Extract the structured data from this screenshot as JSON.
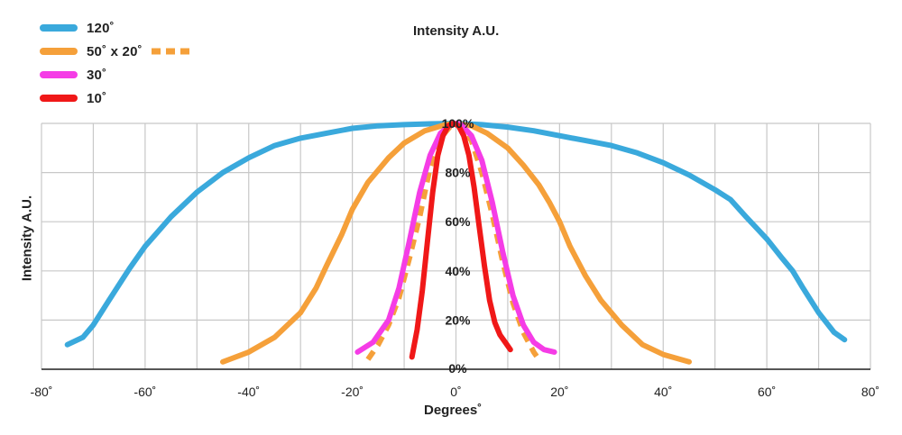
{
  "chart_data": {
    "type": "line",
    "title": "Intensity A.U.",
    "xlabel": "Degrees˚",
    "ylabel": "Intensity A.U.",
    "xlim": [
      -80,
      80
    ],
    "ylim": [
      0,
      100
    ],
    "x_ticks": [
      "-80˚",
      "-60˚",
      "-40˚",
      "-20˚",
      "0˚",
      "20˚",
      "40˚",
      "60˚",
      "80˚"
    ],
    "y_ticks": [
      "0%",
      "20%",
      "40%",
      "60%",
      "80%",
      "100%"
    ],
    "grid": true,
    "legend_position": "top-left",
    "series": [
      {
        "name": "120˚",
        "color": "#3aa9dc",
        "dashed": false,
        "points": [
          [
            -75,
            10
          ],
          [
            -72,
            13
          ],
          [
            -70,
            18
          ],
          [
            -67,
            28
          ],
          [
            -63,
            41
          ],
          [
            -60,
            50
          ],
          [
            -55,
            62
          ],
          [
            -50,
            72
          ],
          [
            -45,
            80
          ],
          [
            -40,
            86
          ],
          [
            -35,
            91
          ],
          [
            -30,
            94
          ],
          [
            -25,
            96
          ],
          [
            -20,
            98
          ],
          [
            -15,
            99
          ],
          [
            -10,
            99.5
          ],
          [
            -5,
            99.8
          ],
          [
            0,
            100
          ],
          [
            5,
            99.5
          ],
          [
            10,
            98.5
          ],
          [
            15,
            97
          ],
          [
            20,
            95
          ],
          [
            25,
            93
          ],
          [
            30,
            91
          ],
          [
            35,
            88
          ],
          [
            40,
            84
          ],
          [
            45,
            79
          ],
          [
            50,
            73
          ],
          [
            53,
            69
          ],
          [
            56,
            62
          ],
          [
            60,
            53
          ],
          [
            63,
            45
          ],
          [
            65,
            40
          ],
          [
            67,
            33
          ],
          [
            70,
            23
          ],
          [
            73,
            15
          ],
          [
            75,
            12
          ]
        ]
      },
      {
        "name": "50˚ x 20˚",
        "color": "#f5a03a",
        "dashed": false,
        "points": [
          [
            -45,
            3
          ],
          [
            -40,
            7
          ],
          [
            -35,
            13
          ],
          [
            -30,
            23
          ],
          [
            -27,
            33
          ],
          [
            -25,
            42
          ],
          [
            -22,
            55
          ],
          [
            -20,
            65
          ],
          [
            -17,
            76
          ],
          [
            -13,
            86
          ],
          [
            -10,
            92
          ],
          [
            -6,
            97
          ],
          [
            -2,
            99.5
          ],
          [
            0,
            100
          ],
          [
            3,
            99
          ],
          [
            6,
            96
          ],
          [
            10,
            90
          ],
          [
            13,
            83
          ],
          [
            16,
            75
          ],
          [
            18,
            68
          ],
          [
            20,
            60
          ],
          [
            22,
            50
          ],
          [
            25,
            38
          ],
          [
            28,
            28
          ],
          [
            32,
            18
          ],
          [
            36,
            10
          ],
          [
            40,
            6
          ],
          [
            45,
            3
          ]
        ]
      },
      {
        "name": "",
        "color": "#f5a03a",
        "dashed": true,
        "points": [
          [
            -17,
            4
          ],
          [
            -15,
            10
          ],
          [
            -13,
            18
          ],
          [
            -11,
            29
          ],
          [
            -9,
            45
          ],
          [
            -7,
            62
          ],
          [
            -5,
            82
          ],
          [
            -3,
            94
          ],
          [
            -1,
            99
          ],
          [
            0,
            100
          ],
          [
            1,
            99
          ],
          [
            3,
            93
          ],
          [
            5,
            80
          ],
          [
            7,
            63
          ],
          [
            9,
            44
          ],
          [
            11,
            27
          ],
          [
            13,
            15
          ],
          [
            15,
            7
          ],
          [
            16,
            4
          ]
        ]
      },
      {
        "name": "30˚",
        "color": "#f53ce6",
        "dashed": false,
        "points": [
          [
            -19,
            7
          ],
          [
            -16,
            11
          ],
          [
            -13,
            20
          ],
          [
            -11,
            33
          ],
          [
            -9,
            52
          ],
          [
            -7,
            72
          ],
          [
            -5,
            87
          ],
          [
            -3,
            96
          ],
          [
            -1,
            99.5
          ],
          [
            0,
            100
          ],
          [
            1,
            99.5
          ],
          [
            3,
            95
          ],
          [
            5,
            85
          ],
          [
            7,
            68
          ],
          [
            9,
            48
          ],
          [
            11,
            30
          ],
          [
            13,
            18
          ],
          [
            15,
            11
          ],
          [
            17,
            8
          ],
          [
            19,
            7
          ]
        ]
      },
      {
        "name": "10˚",
        "color": "#f01818",
        "dashed": false,
        "points": [
          [
            -8.5,
            5
          ],
          [
            -7.5,
            16
          ],
          [
            -6.5,
            32
          ],
          [
            -5.5,
            52
          ],
          [
            -4.5,
            72
          ],
          [
            -3.5,
            87
          ],
          [
            -2.5,
            95
          ],
          [
            -1.5,
            99
          ],
          [
            -0.5,
            100
          ],
          [
            0.5,
            99
          ],
          [
            1.5,
            95
          ],
          [
            2.5,
            87
          ],
          [
            3.5,
            74
          ],
          [
            4.5,
            58
          ],
          [
            5.5,
            42
          ],
          [
            6.5,
            28
          ],
          [
            7.5,
            19
          ],
          [
            8.5,
            14
          ],
          [
            9.5,
            11
          ],
          [
            10.5,
            8
          ]
        ]
      }
    ]
  },
  "legend": [
    {
      "label": "120˚",
      "color": "#3aa9dc"
    },
    {
      "label": "50˚ x 20˚",
      "color": "#f5a03a"
    },
    {
      "label": "30˚",
      "color": "#f53ce6"
    },
    {
      "label": "10˚",
      "color": "#f01818"
    }
  ]
}
